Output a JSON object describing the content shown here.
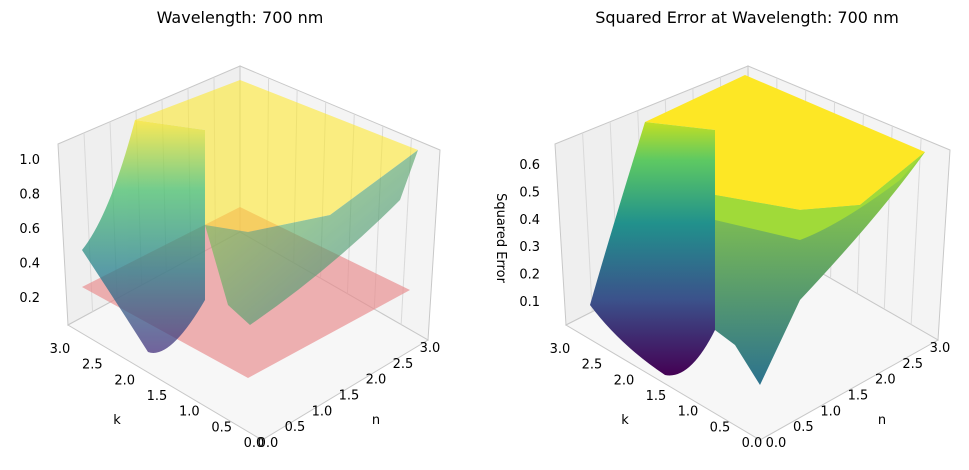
{
  "chart_data": [
    {
      "type": "surface3d",
      "title": "Wavelength: 700 nm",
      "xlabel": "n",
      "ylabel": "k",
      "zlabel": "",
      "xticks": [
        "0.0",
        "0.5",
        "1.0",
        "1.5",
        "2.0",
        "2.5",
        "3.0"
      ],
      "yticks": [
        "0.0",
        "0.5",
        "1.0",
        "1.5",
        "2.0",
        "2.5",
        "3.0"
      ],
      "zticks": [
        "0.2",
        "0.4",
        "0.6",
        "0.8",
        "1.0"
      ],
      "xlim": [
        0,
        3
      ],
      "ylim": [
        0,
        3
      ],
      "zlim": [
        0,
        1
      ],
      "colormap": "viridis",
      "surface_alpha": 0.6,
      "surface_extras": [
        {
          "kind": "plane",
          "z": 0.2,
          "color": "#e8898b"
        }
      ],
      "grid": true
    },
    {
      "type": "surface3d",
      "title": "Squared Error at Wavelength: 700 nm",
      "xlabel": "n",
      "ylabel": "k",
      "zlabel": "Squared Error",
      "xticks": [
        "0.0",
        "0.5",
        "1.0",
        "1.5",
        "2.0",
        "2.5",
        "3.0"
      ],
      "yticks": [
        "0.0",
        "0.5",
        "1.0",
        "1.5",
        "2.0",
        "2.5",
        "3.0"
      ],
      "zticks": [
        "0.1",
        "0.2",
        "0.3",
        "0.4",
        "0.5",
        "0.6"
      ],
      "xlim": [
        0,
        3
      ],
      "ylim": [
        0,
        3
      ],
      "zlim": [
        0,
        0.65
      ],
      "colormap": "viridis",
      "surface_alpha": 1.0,
      "grid": true
    }
  ]
}
